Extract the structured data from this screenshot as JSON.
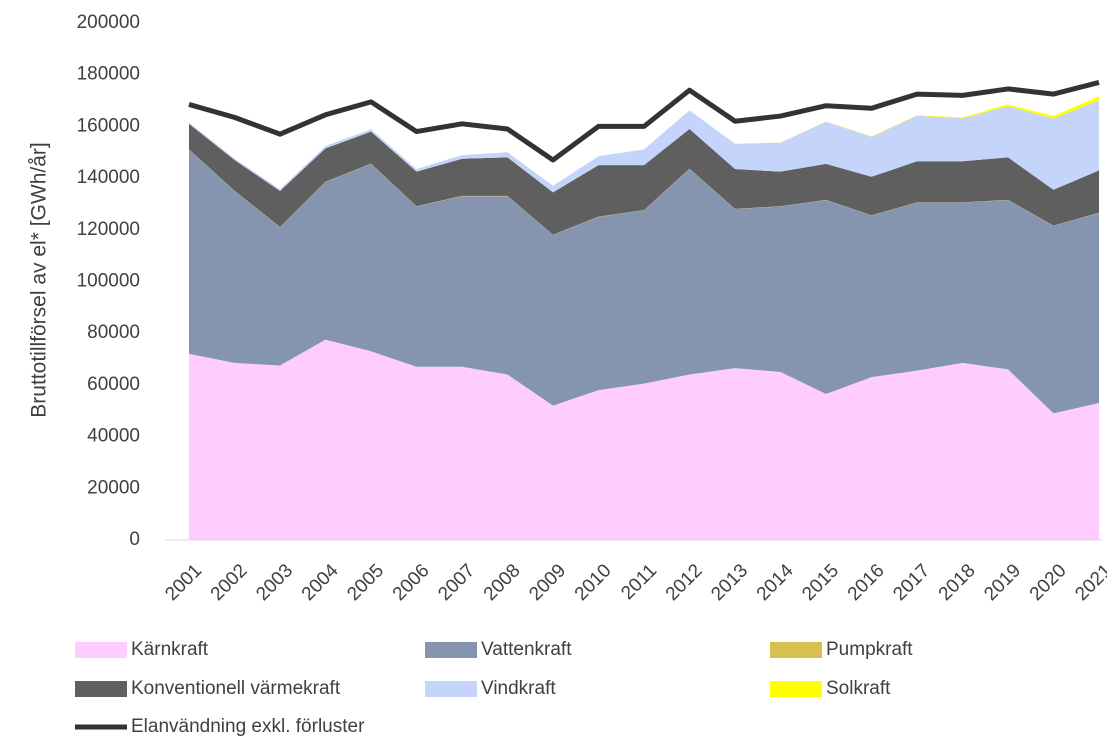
{
  "chart_data": {
    "type": "stacked_area",
    "y_label": "Bruttotillförsel av el* [GWh/år]",
    "categories": [
      "2001",
      "2002",
      "2003",
      "2004",
      "2005",
      "2006",
      "2007",
      "2008",
      "2009",
      "2010",
      "2011",
      "2012",
      "2013",
      "2014",
      "2015",
      "2016",
      "2017",
      "2018",
      "2019",
      "2020",
      "2021"
    ],
    "ylim": [
      0,
      200000
    ],
    "yticks": [
      0,
      20000,
      40000,
      60000,
      80000,
      100000,
      120000,
      140000,
      160000,
      180000,
      200000
    ],
    "series": [
      {
        "name": "Kärnkraft",
        "color": "#ffccff",
        "type": "area",
        "values": [
          72000,
          68500,
          67500,
          77500,
          73000,
          67000,
          67000,
          64000,
          52000,
          58000,
          60500,
          64000,
          66500,
          65000,
          56500,
          63000,
          65500,
          68500,
          66000,
          49000,
          53000
        ]
      },
      {
        "name": "Vattenkraft",
        "color": "#8595b0",
        "type": "area",
        "values": [
          79000,
          66500,
          53500,
          61000,
          72500,
          62000,
          66000,
          69000,
          66000,
          67000,
          67000,
          79500,
          61500,
          64000,
          75000,
          62500,
          65000,
          62000,
          65500,
          72500,
          73500
        ]
      },
      {
        "name": "Pumpkraft",
        "color": "#d9c050",
        "type": "area",
        "values": [
          100,
          100,
          100,
          100,
          100,
          100,
          100,
          100,
          100,
          100,
          100,
          100,
          100,
          100,
          100,
          100,
          100,
          100,
          100,
          100,
          100
        ]
      },
      {
        "name": "Konventionell värmekraft",
        "color": "#5f5f5f",
        "type": "area",
        "values": [
          9900,
          11900,
          13900,
          12900,
          12400,
          13400,
          14400,
          14900,
          16400,
          19900,
          17400,
          15400,
          15400,
          13400,
          13900,
          14900,
          15900,
          15900,
          16400,
          13900,
          16400
        ]
      },
      {
        "name": "Vindkraft",
        "color": "#c5d4fa",
        "type": "area",
        "values": [
          500,
          600,
          700,
          900,
          900,
          1000,
          1400,
          2000,
          2500,
          3500,
          6100,
          7200,
          9800,
          11200,
          16300,
          15500,
          17600,
          16600,
          19800,
          27500,
          27100
        ]
      },
      {
        "name": "Solkraft",
        "color": "#ffff00",
        "type": "area",
        "values": [
          0,
          0,
          0,
          0,
          0,
          0,
          0,
          0,
          0,
          0,
          0,
          0,
          0,
          50,
          100,
          140,
          230,
          400,
          700,
          1000,
          1500
        ]
      },
      {
        "name": "Elanvändning exkl. förluster",
        "color": "#333333",
        "type": "line",
        "values": [
          168500,
          163500,
          157000,
          164500,
          169500,
          158000,
          161000,
          159000,
          147000,
          160000,
          160000,
          174000,
          162000,
          164000,
          168000,
          167000,
          172500,
          172000,
          174500,
          172500,
          177000
        ]
      }
    ]
  }
}
